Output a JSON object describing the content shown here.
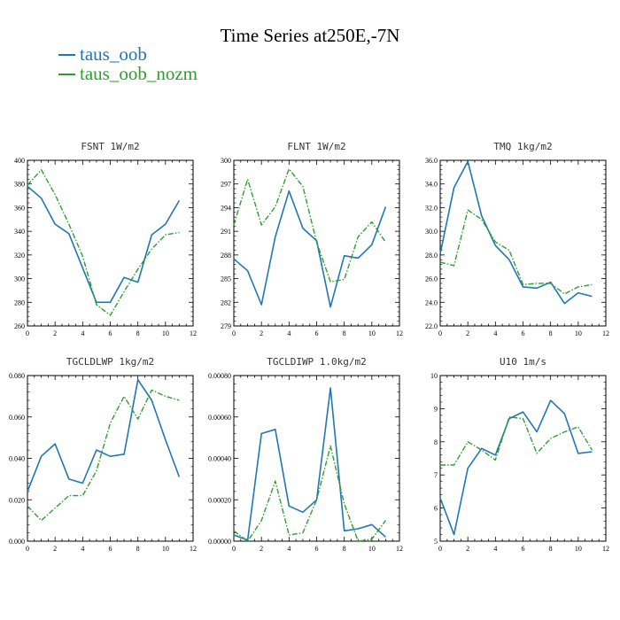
{
  "figure": {
    "title": "Time Series at250E,-7N"
  },
  "legend": [
    {
      "name": "taus_oob",
      "color": "#1f77b4"
    },
    {
      "name": "taus_oob_nozm",
      "color": "#2ca02c"
    }
  ],
  "chart_data": [
    {
      "type": "line",
      "title": "FSNT   1W/m2",
      "x": [
        0,
        1,
        2,
        3,
        4,
        5,
        6,
        7,
        8,
        9,
        10,
        11
      ],
      "xlim": [
        0,
        12
      ],
      "xticks": [
        "0",
        "2",
        "4",
        "6",
        "8",
        "10",
        "12"
      ],
      "ylim": [
        260,
        400
      ],
      "yticks": [
        "260",
        "280",
        "300",
        "320",
        "340",
        "360",
        "380",
        "400"
      ],
      "series": [
        {
          "name": "taus_oob",
          "values": [
            378,
            368,
            346,
            338,
            309,
            280,
            280,
            301,
            297,
            337,
            346,
            366
          ]
        },
        {
          "name": "taus_oob_nozm",
          "values": [
            379,
            392,
            371,
            346,
            319,
            278,
            269,
            289,
            308,
            325,
            337,
            339
          ]
        }
      ]
    },
    {
      "type": "line",
      "title": "FLNT   1W/m2",
      "x": [
        0,
        1,
        2,
        3,
        4,
        5,
        6,
        7,
        8,
        9,
        10,
        11
      ],
      "xlim": [
        0,
        12
      ],
      "xticks": [
        "0",
        "2",
        "4",
        "6",
        "8",
        "10",
        "12"
      ],
      "ylim": [
        279,
        300
      ],
      "yticks": [
        "279",
        "282",
        "285",
        "288",
        "291",
        "294",
        "297",
        "300"
      ],
      "series": [
        {
          "name": "taus_oob",
          "values": [
            287.5,
            286.0,
            281.7,
            290.3,
            296.1,
            291.4,
            289.8,
            281.4,
            287.9,
            287.6,
            289.3,
            294.1
          ]
        },
        {
          "name": "taus_oob_nozm",
          "values": [
            291.8,
            297.6,
            291.8,
            294.1,
            298.9,
            296.7,
            289.6,
            284.6,
            284.9,
            290.3,
            292.2,
            289.6
          ]
        }
      ]
    },
    {
      "type": "line",
      "title": "TMQ   1kg/m2",
      "x": [
        0,
        1,
        2,
        3,
        4,
        5,
        6,
        7,
        8,
        9,
        10,
        11
      ],
      "xlim": [
        0,
        12
      ],
      "xticks": [
        "0",
        "2",
        "4",
        "6",
        "8",
        "10",
        "12"
      ],
      "ylim": [
        22.0,
        36.0
      ],
      "yticks": [
        "22.0",
        "24.0",
        "26.0",
        "28.0",
        "30.0",
        "32.0",
        "34.0",
        "36.0"
      ],
      "series": [
        {
          "name": "taus_oob",
          "values": [
            28.1,
            33.7,
            35.9,
            31.3,
            28.8,
            27.6,
            25.3,
            25.2,
            25.7,
            23.9,
            24.8,
            24.5
          ]
        },
        {
          "name": "taus_oob_nozm",
          "values": [
            27.4,
            27.1,
            31.8,
            31.0,
            29.1,
            28.4,
            25.5,
            25.6,
            25.6,
            24.7,
            25.3,
            25.5
          ]
        }
      ]
    },
    {
      "type": "line",
      "title": "TGCLDLWP   1kg/m2",
      "x": [
        0,
        1,
        2,
        3,
        4,
        5,
        6,
        7,
        8,
        9,
        10,
        11
      ],
      "xlim": [
        0,
        12
      ],
      "xticks": [
        "0",
        "2",
        "4",
        "6",
        "8",
        "10",
        "12"
      ],
      "ylim": [
        0,
        0.08
      ],
      "yticks": [
        "0.000",
        "0.020",
        "0.040",
        "0.060",
        "0.080"
      ],
      "series": [
        {
          "name": "taus_oob",
          "values": [
            0.024,
            0.041,
            0.047,
            0.03,
            0.028,
            0.044,
            0.041,
            0.042,
            0.078,
            0.068,
            0.049,
            0.031
          ]
        },
        {
          "name": "taus_oob_nozm",
          "values": [
            0.017,
            0.01,
            0.016,
            0.022,
            0.022,
            0.034,
            0.057,
            0.07,
            0.059,
            0.073,
            0.07,
            0.068
          ]
        }
      ]
    },
    {
      "type": "line",
      "title": "TGCLDIWP   1.0kg/m2",
      "x": [
        0,
        1,
        2,
        3,
        4,
        5,
        6,
        7,
        8,
        9,
        10,
        11
      ],
      "xlim": [
        0,
        12
      ],
      "xticks": [
        "0",
        "2",
        "4",
        "6",
        "8",
        "10",
        "12"
      ],
      "ylim": [
        0,
        0.0008
      ],
      "yticks": [
        "0.00000",
        "0.00020",
        "0.00040",
        "0.00060",
        "0.00080"
      ],
      "series": [
        {
          "name": "taus_oob",
          "values": [
            3e-05,
            5e-06,
            0.00052,
            0.00054,
            0.00017,
            0.00014,
            0.0002,
            0.00074,
            5e-05,
            6e-05,
            8e-05,
            2e-05
          ]
        },
        {
          "name": "taus_oob_nozm",
          "values": [
            5e-05,
            0.0,
            0.0001,
            0.00029,
            3e-05,
            4e-05,
            0.0002,
            0.00046,
            0.00018,
            0.0,
            1e-05,
            0.0001
          ]
        }
      ]
    },
    {
      "type": "line",
      "title": "U10   1m/s",
      "x": [
        0,
        1,
        2,
        3,
        4,
        5,
        6,
        7,
        8,
        9,
        10,
        11
      ],
      "xlim": [
        0,
        12
      ],
      "xticks": [
        "0",
        "2",
        "4",
        "6",
        "8",
        "10",
        "12"
      ],
      "ylim": [
        5,
        10
      ],
      "yticks": [
        "5",
        "6",
        "7",
        "8",
        "9",
        "10"
      ],
      "series": [
        {
          "name": "taus_oob",
          "values": [
            6.3,
            5.2,
            7.2,
            7.8,
            7.6,
            8.7,
            8.9,
            8.3,
            9.25,
            8.85,
            7.65,
            7.7
          ]
        },
        {
          "name": "taus_oob_nozm",
          "values": [
            7.3,
            7.3,
            8.0,
            7.75,
            7.45,
            8.75,
            8.7,
            7.65,
            8.1,
            8.3,
            8.45,
            7.75
          ]
        }
      ]
    }
  ]
}
